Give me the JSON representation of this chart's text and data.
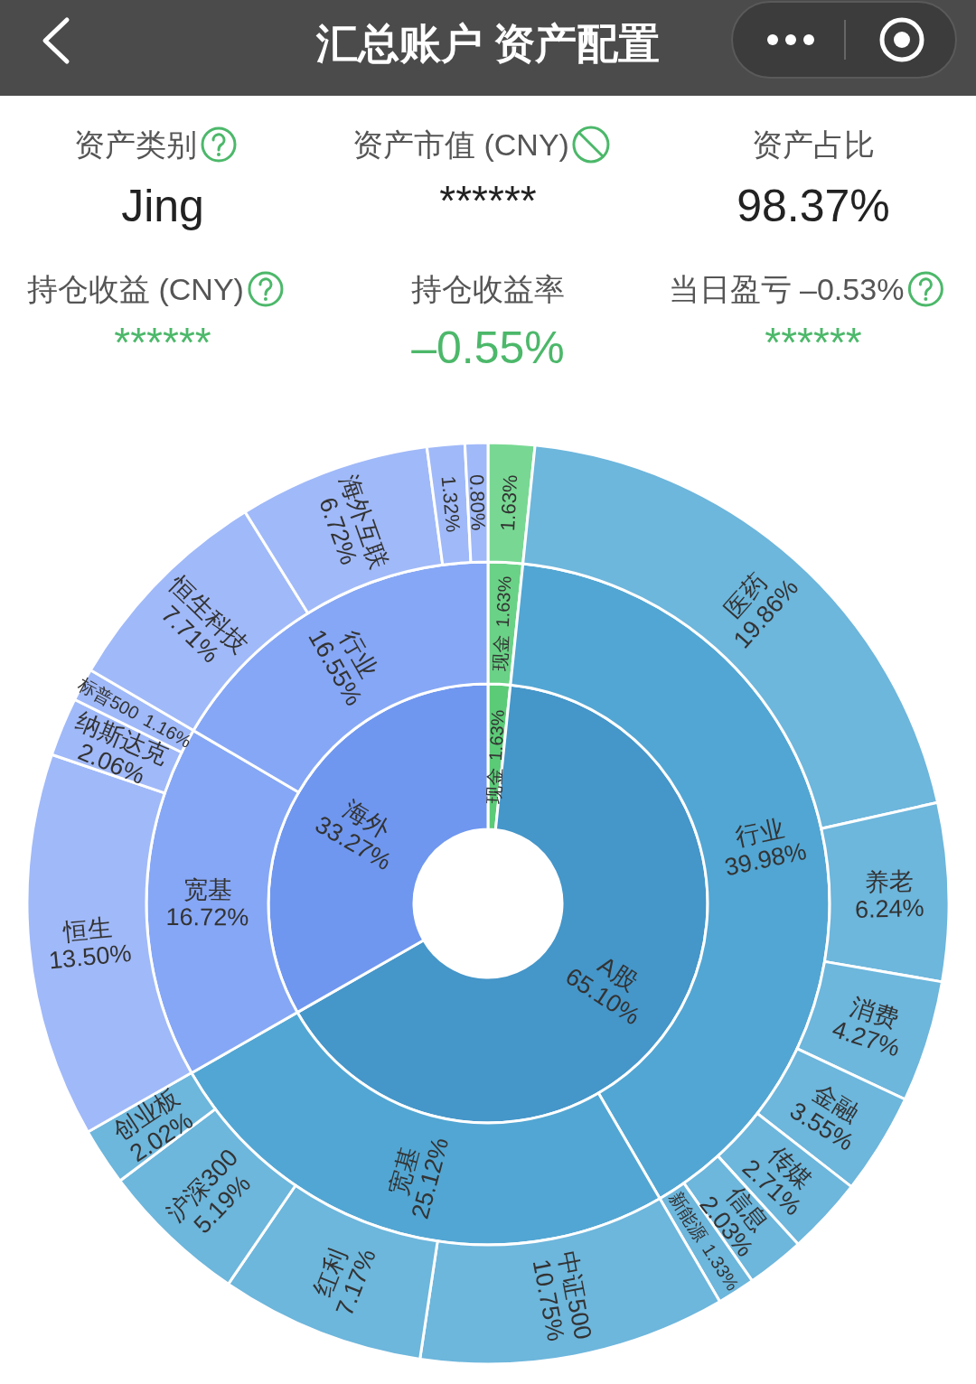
{
  "chart_data": [
    {
      "type": "other",
      "title": "汇总账户 资产配置",
      "annotations": [
        "资产类别",
        "Jing",
        "资产市值 (CNY)",
        "******",
        "资产占比",
        "98.37%",
        "持仓收益 (CNY)",
        "******",
        "持仓收益率",
        "–0.55%",
        "当日盈亏 –0.53%",
        "******"
      ]
    },
    {
      "type": "donut",
      "categories": [
        "现金",
        "A股",
        "海外"
      ],
      "values": [
        1.63,
        65.1,
        33.27
      ],
      "value_labels": [
        "1.63%",
        "65.10%",
        "33.27%"
      ],
      "colors": [
        "#5ccb78",
        "#4596c9",
        "#6f97ef"
      ]
    },
    {
      "type": "donut",
      "categories": [
        "现金",
        "行业",
        "宽基",
        "宽基",
        "行业"
      ],
      "values": [
        1.63,
        39.98,
        25.12,
        16.72,
        16.55
      ],
      "value_labels": [
        "1.63%",
        "39.98%",
        "25.12%",
        "16.72%",
        "16.55%"
      ],
      "colors": [
        "#6ad286",
        "#52a6d3",
        "#52a6d3",
        "#86a7f5",
        "#86a7f5"
      ]
    },
    {
      "type": "donut",
      "categories": [
        null,
        "医药",
        "养老",
        "消费",
        "金融",
        "传媒",
        "信息",
        "新能源",
        "中证500",
        "红利",
        "沪深300",
        "创业板",
        "恒生",
        "纳斯达克",
        "标普500",
        "恒生科技",
        "海外互联",
        null,
        null
      ],
      "values": [
        1.63,
        19.86,
        6.24,
        4.27,
        3.55,
        2.71,
        2.03,
        1.33,
        10.75,
        7.17,
        5.19,
        2.02,
        13.5,
        2.06,
        1.16,
        7.71,
        6.72,
        1.32,
        0.8
      ],
      "value_labels": [
        "1.63%",
        "19.86%",
        "6.24%",
        "4.27%",
        "3.55%",
        "2.71%",
        "2.03%",
        "1.33%",
        "10.75%",
        "7.17%",
        "5.19%",
        "2.02%",
        "13.50%",
        "2.06%",
        "1.16%",
        "7.71%",
        "6.72%",
        "1.32%",
        "0.80%"
      ],
      "colors": [
        "#78d893",
        "#6db6dc",
        "#6db6dc",
        "#6db6dc",
        "#6db6dc",
        "#6db6dc",
        "#6db6dc",
        "#6db6dc",
        "#6db6dc",
        "#6db6dc",
        "#6db6dc",
        "#6db6dc",
        "#a0b9f8",
        "#a0b9f8",
        "#a0b9f8",
        "#a0b9f8",
        "#a0b9f8",
        "#a0b9f8",
        "#a0b9f8"
      ]
    }
  ]
}
